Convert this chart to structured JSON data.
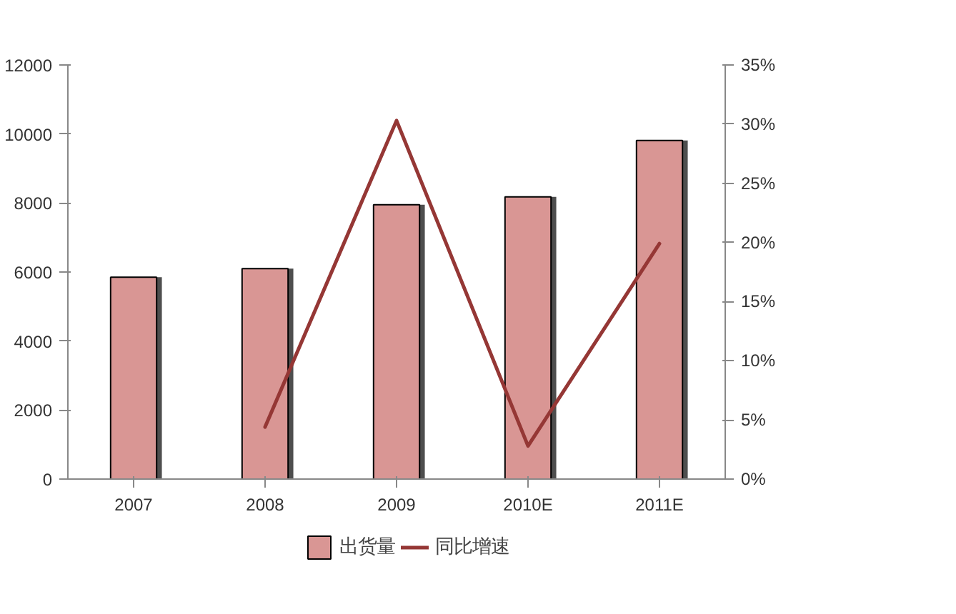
{
  "chart_data": {
    "type": "bar",
    "categories": [
      "2007",
      "2008",
      "2009",
      "2010E",
      "2011E"
    ],
    "series": [
      {
        "name": "出货量",
        "color": "#d99694",
        "values": [
          5850,
          6100,
          7950,
          8180,
          9810
        ]
      },
      {
        "name": "同比增速",
        "type": "line",
        "axis": "y2",
        "color": "#953735",
        "values": [
          null,
          4.4,
          30.3,
          2.8,
          19.9
        ]
      }
    ],
    "ylim": [
      0,
      12000
    ],
    "yticks": [
      0,
      2000,
      4000,
      6000,
      8000,
      10000,
      12000
    ],
    "y2lim": [
      0,
      35
    ],
    "y2ticks": [
      {
        "value": 0,
        "label": "0%"
      },
      {
        "value": 5,
        "label": "5%"
      },
      {
        "value": 10,
        "label": "10%"
      },
      {
        "value": 15,
        "label": "15%"
      },
      {
        "value": 20,
        "label": "20%"
      },
      {
        "value": 25,
        "label": "25%"
      },
      {
        "value": 30,
        "label": "30%"
      },
      {
        "value": 35,
        "label": "35%"
      }
    ],
    "grid": false,
    "legend": "bottom",
    "line_style": "solid"
  }
}
